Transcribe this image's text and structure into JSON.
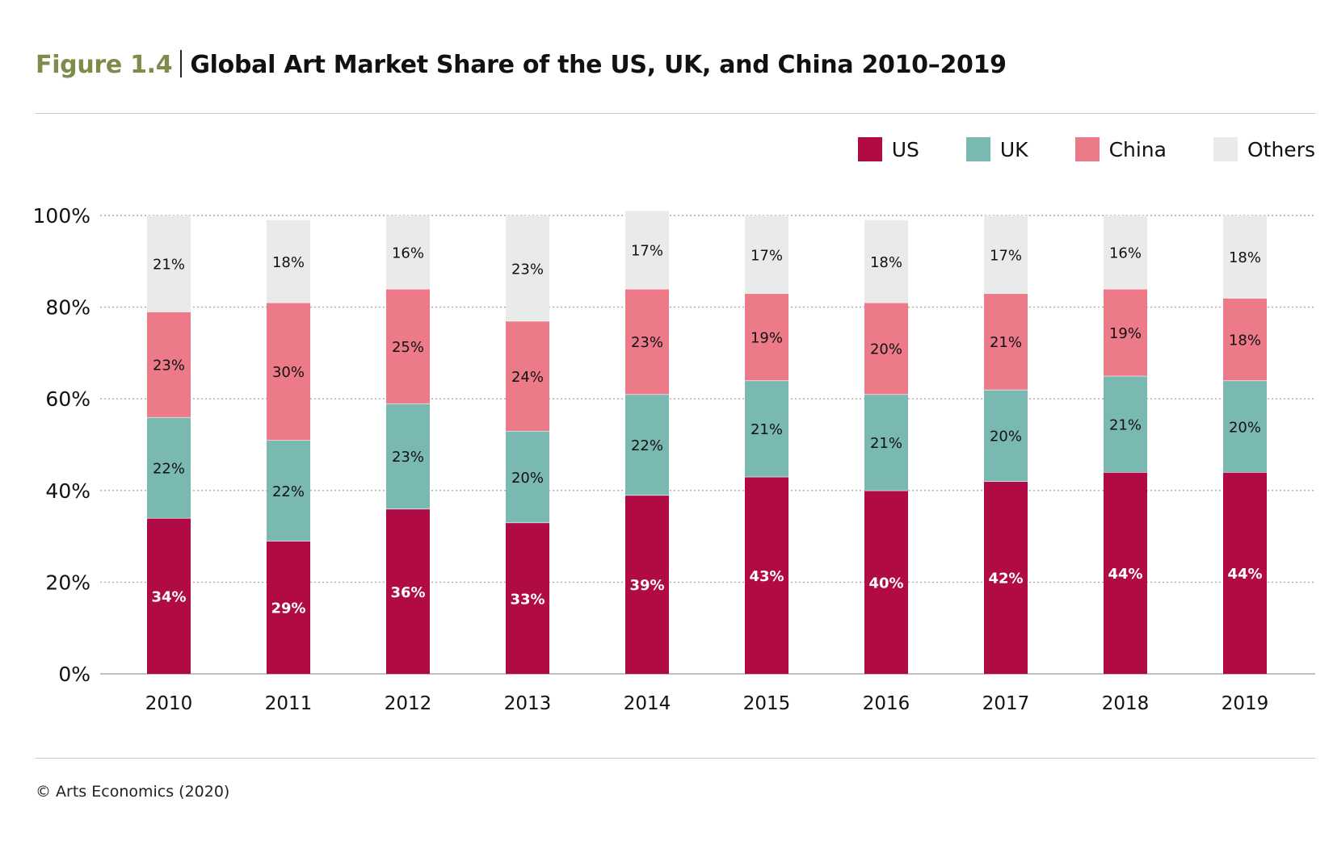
{
  "figure": {
    "label": "Figure 1.4",
    "title": "Global Art Market Share of the US, UK, and China 2010–2019"
  },
  "legend": [
    {
      "name": "US",
      "color": "#b00b45"
    },
    {
      "name": "UK",
      "color": "#7ab8b2"
    },
    {
      "name": "China",
      "color": "#ec7a89"
    },
    {
      "name": "Others",
      "color": "#e9eaea"
    }
  ],
  "footer": {
    "credit": "© Arts Economics (2020)"
  },
  "chart_data": {
    "type": "bar",
    "stacked": true,
    "categories": [
      "2010",
      "2011",
      "2012",
      "2013",
      "2014",
      "2015",
      "2016",
      "2017",
      "2018",
      "2019"
    ],
    "series": [
      {
        "name": "US",
        "color": "#b00b45",
        "values": [
          34,
          29,
          36,
          33,
          39,
          43,
          40,
          42,
          44,
          44
        ]
      },
      {
        "name": "UK",
        "color": "#7ab8b2",
        "values": [
          22,
          22,
          23,
          20,
          22,
          21,
          21,
          20,
          21,
          20
        ]
      },
      {
        "name": "China",
        "color": "#ec7a89",
        "values": [
          23,
          30,
          25,
          24,
          23,
          19,
          20,
          21,
          19,
          18
        ]
      },
      {
        "name": "Others",
        "color": "#e9eaea",
        "values": [
          21,
          18,
          16,
          23,
          17,
          17,
          18,
          17,
          16,
          18
        ]
      }
    ],
    "data_label_suffix": "%",
    "ylim": [
      0,
      100
    ],
    "yticks": [
      "0%",
      "20%",
      "40%",
      "60%",
      "80%",
      "100%"
    ],
    "ytick_values": [
      0,
      20,
      40,
      60,
      80,
      100
    ],
    "grid": true,
    "legend_position": "top-right"
  }
}
